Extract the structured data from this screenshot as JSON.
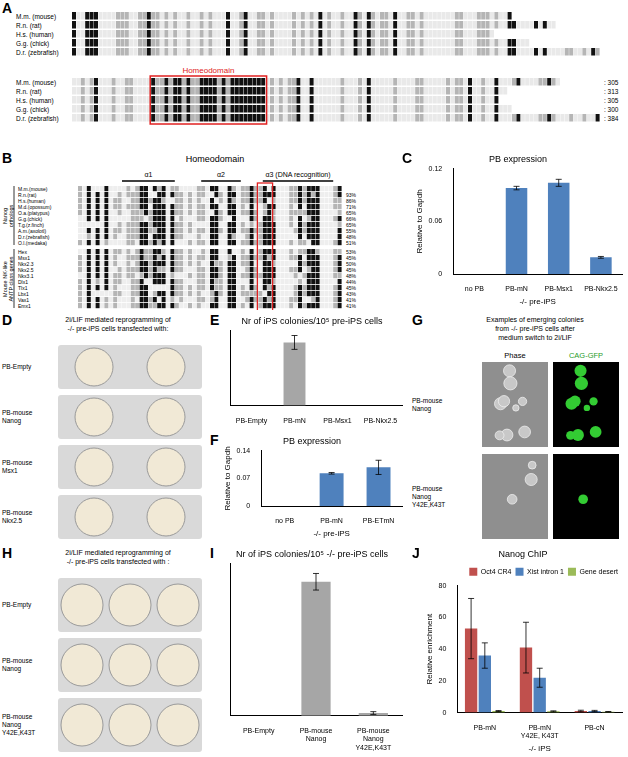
{
  "figure": {
    "A": {
      "label": "A",
      "region": "Homeodomain",
      "species": [
        "M.m. (mouse)",
        "R.n. (rat)",
        "H.s. (human)",
        "G.g. (chick)",
        "D.r. (zebrafish)"
      ],
      "ends": [
        305,
        313,
        305,
        300,
        384
      ]
    },
    "B": {
      "label": "B",
      "title": "Homeodomain",
      "helices": [
        "α1",
        "α2",
        "α3 (DNA recognition)"
      ],
      "groups": [
        {
          "name": [
            "Nanog",
            "orthologs"
          ],
          "rows": [
            {
              "name": "M.m.(mouse)",
              "identity": null
            },
            {
              "name": "R.n.(rat)",
              "identity": "93%"
            },
            {
              "name": "H.s.(human)",
              "identity": "86%"
            },
            {
              "name": "M.d.(opossum)",
              "identity": "71%"
            },
            {
              "name": "O.a.(platypus)",
              "identity": "65%"
            },
            {
              "name": "G.g.(chick)",
              "identity": "66%"
            },
            {
              "name": "T.g.(z.finch)",
              "identity": "65%"
            },
            {
              "name": "A.m.(axolotl)",
              "identity": "55%"
            },
            {
              "name": "D.r.(zebrafish)",
              "identity": "48%"
            },
            {
              "name": "O.l.(medaka)",
              "identity": "51%"
            }
          ]
        },
        {
          "name": [
            "Mouse NK-like",
            "ANTP class genes"
          ],
          "rows": [
            {
              "name": "Hex",
              "identity": "53%"
            },
            {
              "name": "Msx1",
              "identity": "45%"
            },
            {
              "name": "Nkx2.3",
              "identity": "50%"
            },
            {
              "name": "Nkx2.5",
              "identity": "45%"
            },
            {
              "name": "Nkx3.1",
              "identity": "48%"
            },
            {
              "name": "Dlx1",
              "identity": "44%"
            },
            {
              "name": "Tlx1",
              "identity": "45%"
            },
            {
              "name": "Lbx1",
              "identity": "43%"
            },
            {
              "name": "Vax1",
              "identity": "41%"
            },
            {
              "name": "Emx1",
              "identity": "41%"
            }
          ]
        }
      ]
    },
    "D": {
      "label": "D",
      "title": [
        "2i/LIF mediated reprogramming of",
        "-/- pre-iPS cells transfected with:"
      ],
      "rows": [
        [
          "PB-Empty"
        ],
        [
          "PB-mouse",
          "Nanog"
        ],
        [
          "PB-mouse",
          "Msx1"
        ],
        [
          "PB-mouse",
          "Nkx2.5"
        ]
      ]
    },
    "G": {
      "label": "G",
      "title": [
        "Examples of emerging colonies",
        "from -/- pre-iPS cells after",
        "medium switch to 2i/LIF"
      ],
      "columns": [
        "Phase",
        "CAG-GFP"
      ],
      "rows": [
        [
          "PB-mouse",
          "Nanog"
        ],
        [
          "PB-mouse",
          "Nanog",
          "Y42E,K43T"
        ]
      ]
    },
    "H": {
      "label": "H",
      "title": [
        "2i/LIF mediated reprogramming of",
        "-/- pre-iPS cells transfected with :"
      ],
      "rows": [
        [
          "PB-Empty"
        ],
        [
          "PB-mouse",
          "Nanog"
        ],
        [
          "PB-mouse",
          "Nanog",
          "Y42E,K43T"
        ]
      ]
    }
  },
  "chart_data": [
    {
      "panel": "C",
      "type": "bar",
      "title": "PB expression",
      "categories": [
        "no PB",
        "PB-mN",
        "PB-Msx1",
        "PB-Nkx2.5"
      ],
      "values": [
        0,
        0.098,
        0.104,
        0.019
      ],
      "errors": [
        null,
        0.002,
        0.004,
        0.001
      ],
      "color": "#4f81bd",
      "ylim": [
        0,
        0.12
      ],
      "yticks": [
        0,
        0.06,
        0.12
      ],
      "y_label": "Relative to Gapdh",
      "x_label": "-/- pre-iPS",
      "grid": false
    },
    {
      "panel": "E",
      "type": "bar",
      "title": "Nr of iPS colonies/10⁵ pre-iPS cells",
      "categories": [
        "PB-Empty",
        "PB-mN",
        "PB-Msx1",
        "PB-Nkx2.5"
      ],
      "values": [
        0,
        228,
        0,
        0
      ],
      "errors": [
        null,
        25,
        null,
        null
      ],
      "color": "#a6a6a6",
      "ylim": [
        0,
        270
      ],
      "tick_labels": "x",
      "grid": false
    },
    {
      "panel": "F",
      "type": "bar",
      "title": "PB expression",
      "categories": [
        "no PB",
        "PB-mN",
        "PB-ETmN"
      ],
      "values": [
        0,
        0.083,
        0.098
      ],
      "errors": [
        null,
        0.002,
        0.018
      ],
      "color": "#4f81bd",
      "ylim": [
        0,
        0.14
      ],
      "yticks": [
        0,
        0.07,
        0.14
      ],
      "y_label": "Relative to Gapdh",
      "x_label": "-/- pre-iPS",
      "grid": false
    },
    {
      "panel": "I",
      "type": "bar",
      "title": "Nr of iPS colonies/10⁵ -/- pre-iPS cells",
      "categories": [
        [
          "PB-Empty"
        ],
        [
          "PB-mouse",
          "Nanog"
        ],
        [
          "PB-mouse",
          "Nanog",
          "Y42E,K43T"
        ]
      ],
      "values": [
        0,
        970,
        20
      ],
      "errors": [
        null,
        60,
        10
      ],
      "color": "#a6a6a6",
      "ylim": [
        0,
        1100
      ],
      "tick_labels": "x",
      "grid": false
    },
    {
      "panel": "J",
      "type": "bar",
      "title": "Nanog ChIP",
      "categories": [
        "PB-mN",
        [
          "PB-mN",
          "Y42E, K43T"
        ],
        "PB-cN"
      ],
      "series": [
        {
          "name": "Oct4 CR4",
          "color": "#c0504d",
          "values": [
            53,
            41,
            1
          ],
          "errors": [
            19,
            16,
            0.5
          ]
        },
        {
          "name": "Xist intron 1",
          "color": "#4f81bd",
          "values": [
            36,
            22,
            1
          ],
          "errors": [
            8,
            6,
            0.4
          ]
        },
        {
          "name": "Gene desert",
          "color": "#9bbb59",
          "values": [
            1,
            0.8,
            0.5
          ],
          "errors": [
            0.3,
            0.3,
            0.2
          ]
        }
      ],
      "ylim": [
        0,
        80
      ],
      "yticks": [
        0,
        20,
        40,
        60,
        80
      ],
      "y_label": "Relative enrichment",
      "x_label": "-/- iPS",
      "legend": "top-right",
      "grid": false
    }
  ]
}
